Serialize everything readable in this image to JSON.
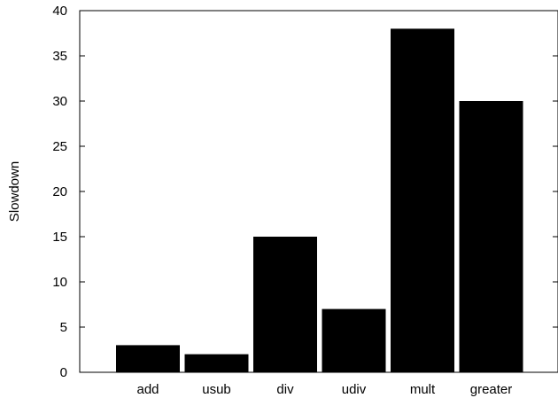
{
  "chart_data": {
    "type": "bar",
    "categories": [
      "add",
      "usub",
      "div",
      "udiv",
      "mult",
      "greater"
    ],
    "values": [
      3,
      2,
      15,
      7,
      38,
      30
    ],
    "title": "",
    "xlabel": "",
    "ylabel": "Slowdown",
    "ylim": [
      0,
      40
    ],
    "yticks": [
      0,
      5,
      10,
      15,
      20,
      25,
      30,
      35,
      40
    ],
    "grid": false,
    "legend": "none",
    "bar_color": "#000000"
  }
}
